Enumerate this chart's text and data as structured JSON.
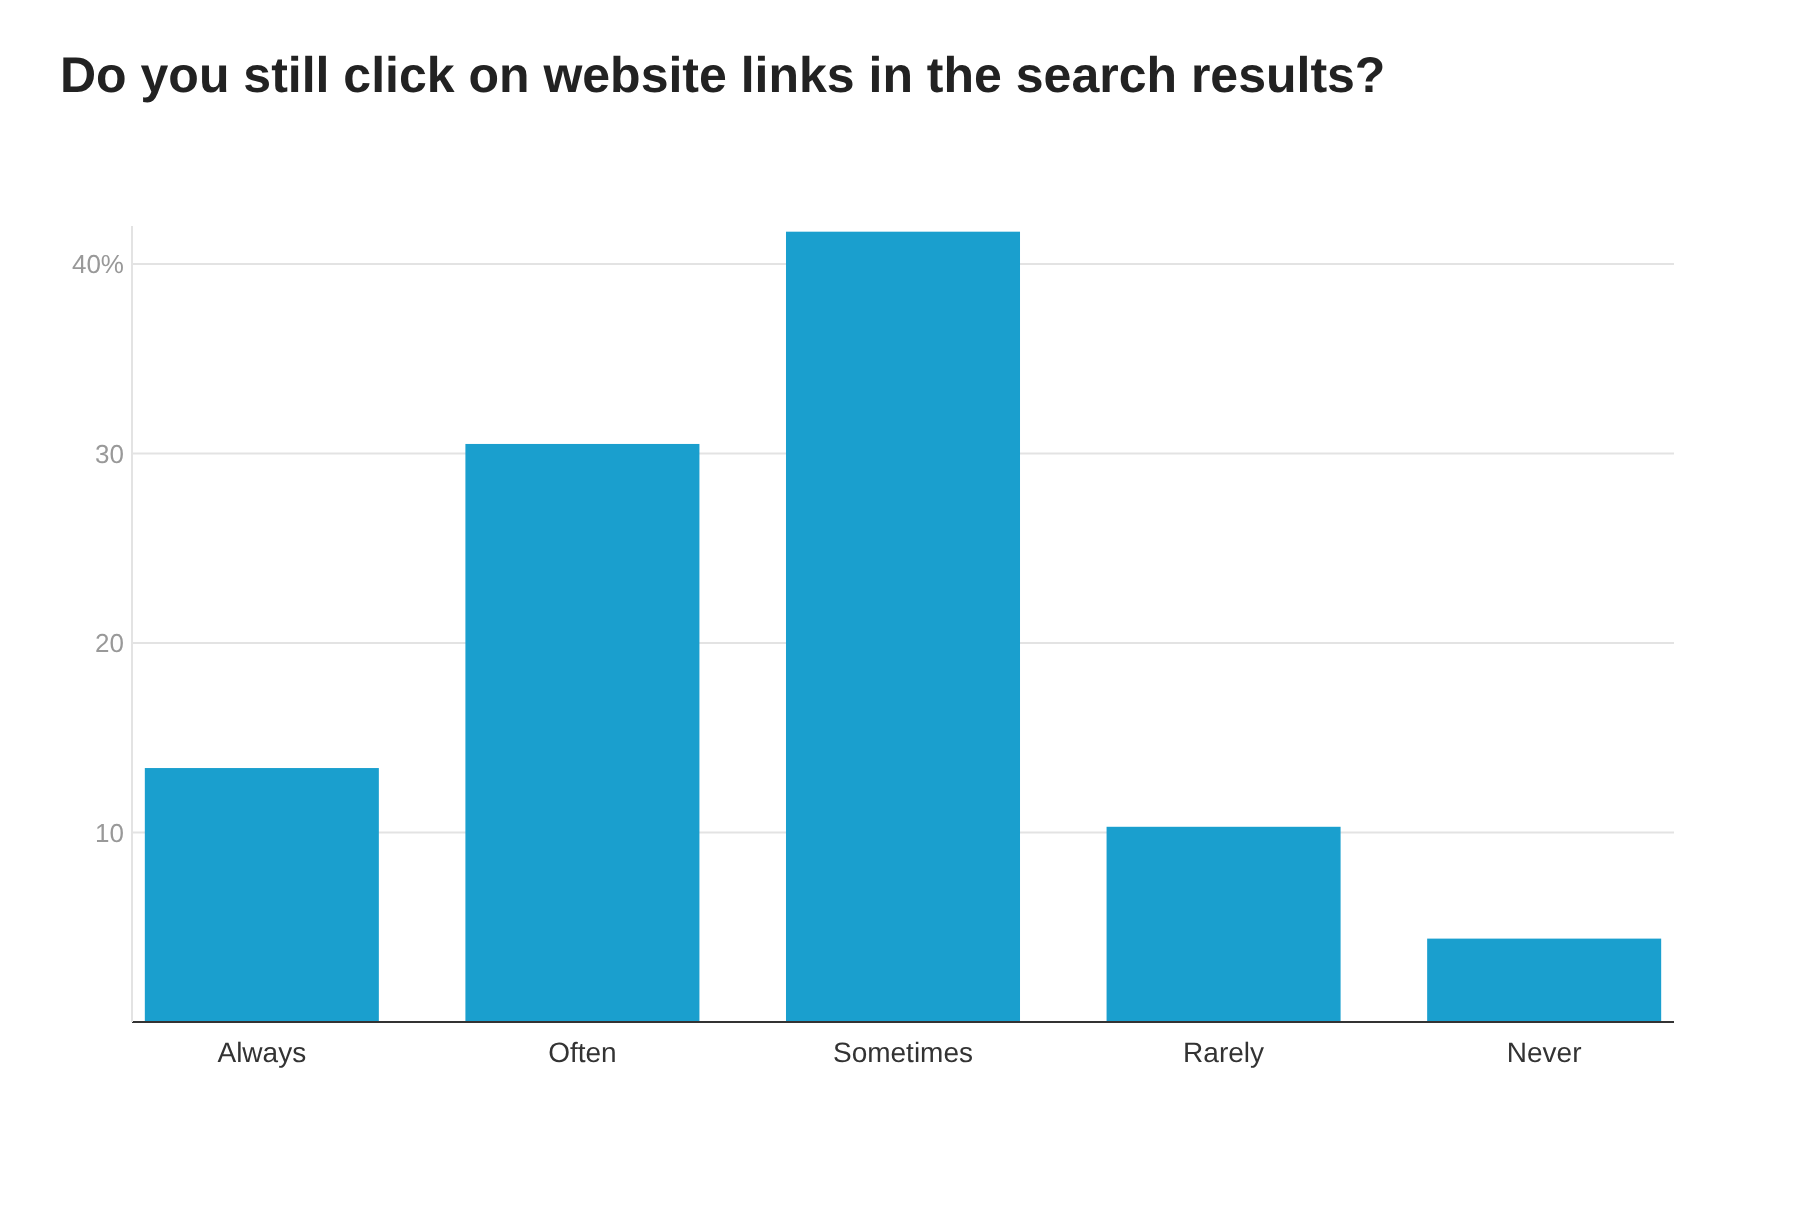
{
  "chart_data": {
    "type": "bar",
    "title": "Do you still click on website links in the search results?",
    "categories": [
      "Always",
      "Often",
      "Sometimes",
      "Rarely",
      "Never"
    ],
    "values": [
      13.4,
      30.5,
      41.7,
      10.3,
      4.4
    ],
    "color": "#1a9fce",
    "ylim": [
      0,
      42
    ],
    "yticks": [
      10,
      20,
      30,
      {
        "value": 40,
        "label": "40%"
      }
    ],
    "grid": "y"
  }
}
